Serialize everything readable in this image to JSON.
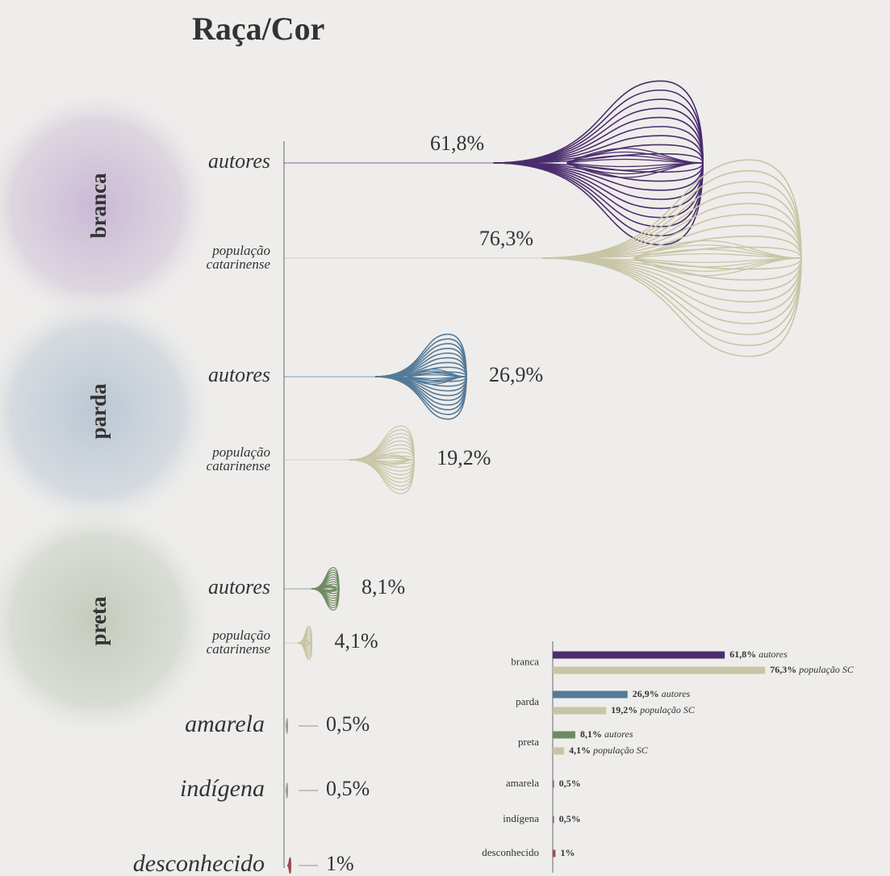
{
  "chart_data": [
    {
      "type": "fan",
      "title": "Raça/Cor",
      "categories": [
        "branca",
        "parda",
        "preta",
        "amarela",
        "indígena",
        "desconhecido"
      ],
      "series": [
        {
          "name": "autores",
          "colors": [
            "#4b2d6e",
            "#557a98",
            "#6f8a62",
            "#9a9a9a",
            "#9a9a9a",
            "#a04a55"
          ],
          "values": [
            61.8,
            26.9,
            8.1,
            0.5,
            0.5,
            1
          ],
          "value_labels": [
            "61,8%",
            "26,9%",
            "8,1%",
            "0,5%",
            "0,5%",
            "1%"
          ]
        },
        {
          "name": "população catarinense",
          "color": "#c8c5a6",
          "values": [
            76.3,
            19.2,
            4.1,
            null,
            null,
            null
          ],
          "value_labels": [
            "76,3%",
            "19,2%",
            "4,1%",
            null,
            null,
            null
          ]
        }
      ]
    },
    {
      "type": "bar",
      "categories": [
        "branca",
        "parda",
        "preta",
        "amarela",
        "indígena",
        "desconhecido"
      ],
      "series": [
        {
          "name": "autores",
          "colors": [
            "#4b2d6e",
            "#557a98",
            "#6f8a62",
            "#8a6f8a",
            "#8a6f8a",
            "#a04a55"
          ],
          "values": [
            61.8,
            26.9,
            8.1,
            0.5,
            0.5,
            1
          ],
          "value_labels": [
            "61,8%",
            "26,9%",
            "8,1%",
            "0,5%",
            "0,5%",
            "1%"
          ]
        },
        {
          "name": "população SC",
          "color": "#c8c5a6",
          "values": [
            76.3,
            19.2,
            4.1,
            null,
            null,
            null
          ],
          "value_labels": [
            "76,3%",
            "19,2%",
            "4,1%",
            null,
            null,
            null
          ]
        }
      ]
    }
  ]
}
